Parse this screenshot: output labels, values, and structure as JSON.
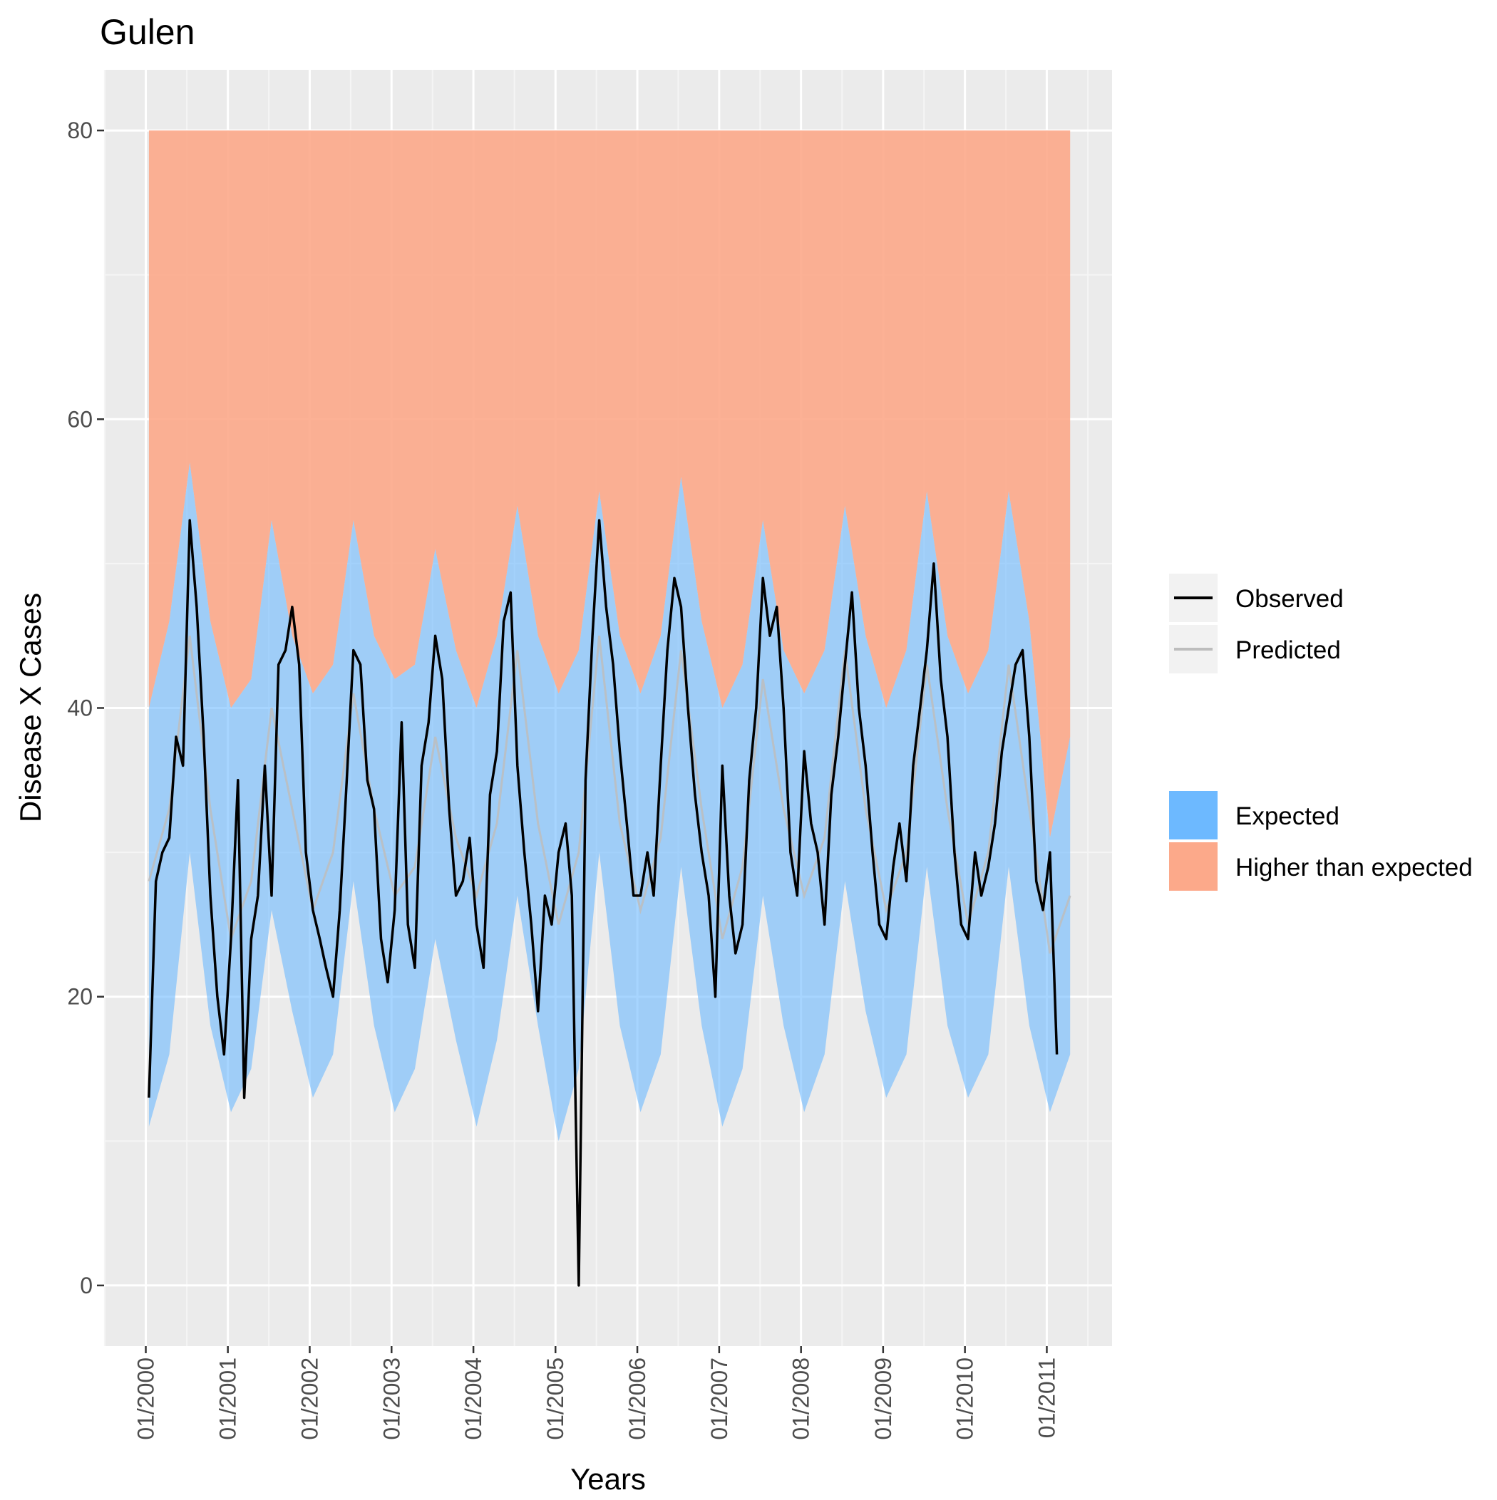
{
  "chart_data": {
    "type": "line",
    "title": "Gulen",
    "xlabel": "Years",
    "ylabel": "Disease X Cases",
    "x_ticks": [
      "01/2000",
      "01/2001",
      "01/2002",
      "01/2003",
      "01/2004",
      "01/2005",
      "01/2006",
      "01/2007",
      "01/2008",
      "01/2009",
      "01/2010",
      "01/2011"
    ],
    "y_ticks": [
      "0",
      "20",
      "40",
      "60",
      "80"
    ],
    "xlim": [
      "1999-06-29",
      "2011-10-19"
    ],
    "ylim": [
      -4.2,
      84.2
    ],
    "grid": true,
    "legend_position": "right",
    "legend": {
      "lines": [
        {
          "label": "Observed",
          "color": "#000000"
        },
        {
          "label": "Predicted",
          "color": "#bdbdbd"
        }
      ],
      "fills": [
        {
          "label": "Expected",
          "color": "#6db9ff"
        },
        {
          "label": "Higher than expected",
          "color": "#fca98a"
        }
      ]
    },
    "x_start": "2000-01-01",
    "x_end": "2011-04-15",
    "higher_than_expected_top": 80,
    "series": [
      {
        "name": "Observed",
        "x": [
          "2000-01",
          "2000-02",
          "2000-03",
          "2000-04",
          "2000-05",
          "2000-06",
          "2000-07",
          "2000-08",
          "2000-09",
          "2000-10",
          "2000-11",
          "2000-12",
          "2001-01",
          "2001-02",
          "2001-03",
          "2001-04",
          "2001-05",
          "2001-06",
          "2001-07",
          "2001-08",
          "2001-09",
          "2001-10",
          "2001-11",
          "2001-12",
          "2002-01",
          "2002-02",
          "2002-03",
          "2002-04",
          "2002-05",
          "2002-06",
          "2002-07",
          "2002-08",
          "2002-09",
          "2002-10",
          "2002-11",
          "2002-12",
          "2003-01",
          "2003-02",
          "2003-03",
          "2003-04",
          "2003-05",
          "2003-06",
          "2003-07",
          "2003-08",
          "2003-09",
          "2003-10",
          "2003-11",
          "2003-12",
          "2004-01",
          "2004-02",
          "2004-03",
          "2004-04",
          "2004-05",
          "2004-06",
          "2004-07",
          "2004-08",
          "2004-09",
          "2004-10",
          "2004-11",
          "2004-12",
          "2005-01",
          "2005-02",
          "2005-03",
          "2005-04",
          "2005-05",
          "2005-06",
          "2005-07",
          "2005-08",
          "2005-09",
          "2005-10",
          "2005-11",
          "2005-12",
          "2006-01",
          "2006-02",
          "2006-03",
          "2006-04",
          "2006-05",
          "2006-06",
          "2006-07",
          "2006-08",
          "2006-09",
          "2006-10",
          "2006-11",
          "2006-12",
          "2007-01",
          "2007-02",
          "2007-03",
          "2007-04",
          "2007-05",
          "2007-06",
          "2007-07",
          "2007-08",
          "2007-09",
          "2007-10",
          "2007-11",
          "2007-12",
          "2008-01",
          "2008-02",
          "2008-03",
          "2008-04",
          "2008-05",
          "2008-06",
          "2008-07",
          "2008-08",
          "2008-09",
          "2008-10",
          "2008-11",
          "2008-12",
          "2009-01",
          "2009-02",
          "2009-03",
          "2009-04",
          "2009-05",
          "2009-06",
          "2009-07",
          "2009-08",
          "2009-09",
          "2009-10",
          "2009-11",
          "2009-12",
          "2010-01",
          "2010-02",
          "2010-03",
          "2010-04",
          "2010-05",
          "2010-06",
          "2010-07",
          "2010-08",
          "2010-09",
          "2010-10",
          "2010-11",
          "2010-12",
          "2011-01",
          "2011-02"
        ],
        "values": [
          13,
          28,
          30,
          31,
          38,
          36,
          53,
          47,
          38,
          27,
          20,
          16,
          24,
          35,
          13,
          24,
          27,
          36,
          27,
          43,
          44,
          47,
          43,
          30,
          26,
          24,
          22,
          20,
          26,
          35,
          44,
          43,
          35,
          33,
          24,
          21,
          26,
          39,
          25,
          22,
          36,
          39,
          45,
          42,
          33,
          27,
          28,
          31,
          25,
          22,
          34,
          37,
          46,
          48,
          36,
          30,
          25,
          19,
          27,
          25,
          30,
          32,
          27,
          0,
          35,
          45,
          53,
          47,
          43,
          37,
          32,
          27,
          27,
          30,
          27,
          36,
          44,
          49,
          47,
          40,
          34,
          30,
          27,
          20,
          36,
          27,
          23,
          25,
          35,
          40,
          49,
          45,
          47,
          40,
          30,
          27,
          37,
          32,
          30,
          25,
          34,
          38,
          43,
          48,
          40,
          36,
          30,
          25,
          24,
          29,
          32,
          28,
          36,
          40,
          44,
          50,
          42,
          38,
          30,
          25,
          24,
          30,
          27,
          29,
          32,
          37,
          40,
          43,
          44,
          38,
          28,
          26,
          30,
          16
        ]
      },
      {
        "name": "Predicted",
        "x": [
          "2000-01",
          "2000-04",
          "2000-07",
          "2000-10",
          "2001-01",
          "2001-04",
          "2001-07",
          "2001-10",
          "2002-01",
          "2002-04",
          "2002-07",
          "2002-10",
          "2003-01",
          "2003-04",
          "2003-07",
          "2003-10",
          "2004-01",
          "2004-04",
          "2004-07",
          "2004-10",
          "2005-01",
          "2005-04",
          "2005-07",
          "2005-10",
          "2006-01",
          "2006-04",
          "2006-07",
          "2006-10",
          "2007-01",
          "2007-04",
          "2007-07",
          "2007-10",
          "2008-01",
          "2008-04",
          "2008-07",
          "2008-10",
          "2009-01",
          "2009-04",
          "2009-07",
          "2009-10",
          "2010-01",
          "2010-04",
          "2010-07",
          "2010-10",
          "2011-01",
          "2011-04"
        ],
        "values": [
          28,
          33,
          45,
          33,
          24,
          28,
          40,
          33,
          26,
          30,
          41,
          33,
          27,
          29,
          38,
          31,
          27,
          32,
          44,
          32,
          25,
          30,
          45,
          32,
          26,
          31,
          44,
          33,
          24,
          29,
          42,
          33,
          27,
          31,
          44,
          33,
          26,
          30,
          43,
          33,
          25,
          30,
          43,
          33,
          23,
          27
        ]
      },
      {
        "name": "Expected upper",
        "x": [
          "2000-01",
          "2000-04",
          "2000-07",
          "2000-10",
          "2001-01",
          "2001-04",
          "2001-07",
          "2001-10",
          "2002-01",
          "2002-04",
          "2002-07",
          "2002-10",
          "2003-01",
          "2003-04",
          "2003-07",
          "2003-10",
          "2004-01",
          "2004-04",
          "2004-07",
          "2004-10",
          "2005-01",
          "2005-04",
          "2005-07",
          "2005-10",
          "2006-01",
          "2006-04",
          "2006-07",
          "2006-10",
          "2007-01",
          "2007-04",
          "2007-07",
          "2007-10",
          "2008-01",
          "2008-04",
          "2008-07",
          "2008-10",
          "2009-01",
          "2009-04",
          "2009-07",
          "2009-10",
          "2010-01",
          "2010-04",
          "2010-07",
          "2010-10",
          "2011-01",
          "2011-04"
        ],
        "values": [
          40,
          46,
          57,
          46,
          40,
          42,
          53,
          45,
          41,
          43,
          53,
          45,
          42,
          43,
          51,
          44,
          40,
          45,
          54,
          45,
          41,
          44,
          55,
          45,
          41,
          45,
          56,
          46,
          40,
          43,
          53,
          44,
          41,
          44,
          54,
          45,
          40,
          44,
          55,
          45,
          41,
          44,
          55,
          46,
          31,
          38
        ]
      },
      {
        "name": "Expected lower",
        "x": [
          "2000-01",
          "2000-04",
          "2000-07",
          "2000-10",
          "2001-01",
          "2001-04",
          "2001-07",
          "2001-10",
          "2002-01",
          "2002-04",
          "2002-07",
          "2002-10",
          "2003-01",
          "2003-04",
          "2003-07",
          "2003-10",
          "2004-01",
          "2004-04",
          "2004-07",
          "2004-10",
          "2005-01",
          "2005-04",
          "2005-07",
          "2005-10",
          "2006-01",
          "2006-04",
          "2006-07",
          "2006-10",
          "2007-01",
          "2007-04",
          "2007-07",
          "2007-10",
          "2008-01",
          "2008-04",
          "2008-07",
          "2008-10",
          "2009-01",
          "2009-04",
          "2009-07",
          "2009-10",
          "2010-01",
          "2010-04",
          "2010-07",
          "2010-10",
          "2011-01",
          "2011-04"
        ],
        "values": [
          11,
          16,
          30,
          18,
          12,
          15,
          26,
          19,
          13,
          16,
          28,
          18,
          12,
          15,
          24,
          17,
          11,
          17,
          27,
          18,
          10,
          15,
          30,
          18,
          12,
          16,
          29,
          18,
          11,
          15,
          27,
          18,
          12,
          16,
          28,
          19,
          13,
          16,
          29,
          18,
          13,
          16,
          29,
          18,
          12,
          16
        ]
      }
    ]
  }
}
